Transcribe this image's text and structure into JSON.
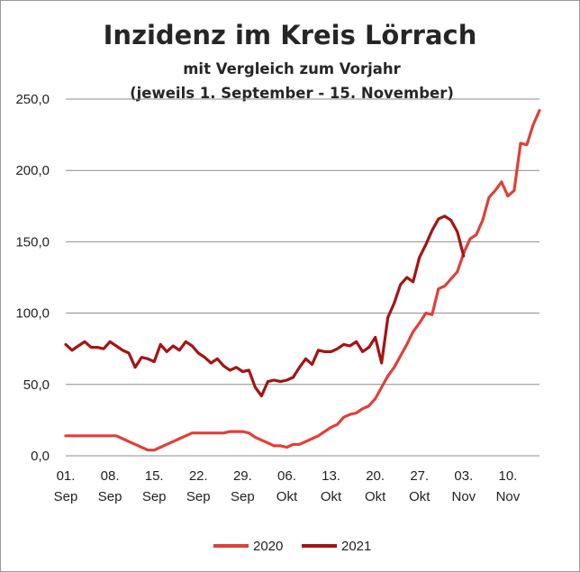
{
  "chart_data": {
    "type": "line",
    "title": "Inzidenz im Kreis Lörrach",
    "subtitle": "mit Vergleich zum Vorjahr",
    "subtitle2": "(jeweils 1. September - 15. November)",
    "xlabel": "",
    "ylabel": "",
    "ylim": [
      0,
      250
    ],
    "xlim": [
      1,
      76
    ],
    "grid": true,
    "legend_position": "bottom",
    "y_ticks": [
      "0,0",
      "50,0",
      "100,0",
      "150,0",
      "200,0",
      "250,0"
    ],
    "x_ticks": [
      {
        "day": 1,
        "l1": "01.",
        "l2": "Sep"
      },
      {
        "day": 8,
        "l1": "08.",
        "l2": "Sep"
      },
      {
        "day": 15,
        "l1": "15.",
        "l2": "Sep"
      },
      {
        "day": 22,
        "l1": "22.",
        "l2": "Sep"
      },
      {
        "day": 29,
        "l1": "29.",
        "l2": "Sep"
      },
      {
        "day": 36,
        "l1": "06.",
        "l2": "Okt"
      },
      {
        "day": 43,
        "l1": "13.",
        "l2": "Okt"
      },
      {
        "day": 50,
        "l1": "20.",
        "l2": "Okt"
      },
      {
        "day": 57,
        "l1": "27.",
        "l2": "Okt"
      },
      {
        "day": 64,
        "l1": "03.",
        "l2": "Nov"
      },
      {
        "day": 71,
        "l1": "10.",
        "l2": "Nov"
      }
    ],
    "series": [
      {
        "name": "2020",
        "color": "#e0403a",
        "x": [
          1,
          2,
          3,
          4,
          5,
          6,
          7,
          8,
          9,
          10,
          11,
          12,
          13,
          14,
          15,
          16,
          17,
          18,
          19,
          20,
          21,
          22,
          23,
          24,
          25,
          26,
          27,
          28,
          29,
          30,
          31,
          32,
          33,
          34,
          35,
          36,
          37,
          38,
          39,
          40,
          41,
          42,
          43,
          44,
          45,
          46,
          47,
          48,
          49,
          50,
          51,
          52,
          53,
          54,
          55,
          56,
          57,
          58,
          59,
          60,
          61,
          62,
          63,
          64,
          65,
          66,
          67,
          68,
          69,
          70,
          71,
          72,
          73,
          74,
          75,
          76
        ],
        "values": [
          14,
          14,
          14,
          14,
          14,
          14,
          14,
          14,
          14,
          12,
          10,
          8,
          6,
          4,
          4,
          6,
          8,
          10,
          12,
          14,
          16,
          16,
          16,
          16,
          16,
          16,
          17,
          17,
          17,
          16,
          13,
          11,
          9,
          7,
          7,
          6,
          8,
          8,
          10,
          12,
          14,
          17,
          20,
          22,
          27,
          29,
          30,
          33,
          35,
          40,
          48,
          56,
          62,
          70,
          78,
          87,
          93,
          100,
          99,
          117,
          119,
          124,
          129,
          142,
          152,
          155,
          165,
          181,
          186,
          192,
          182,
          186,
          219,
          218,
          232,
          242
        ]
      },
      {
        "name": "2021",
        "color": "#a41414",
        "x": [
          1,
          2,
          3,
          4,
          5,
          6,
          7,
          8,
          9,
          10,
          11,
          12,
          13,
          14,
          15,
          16,
          17,
          18,
          19,
          20,
          21,
          22,
          23,
          24,
          25,
          26,
          27,
          28,
          29,
          30,
          31,
          32,
          33,
          34,
          35,
          36,
          37,
          38,
          39,
          40,
          41,
          42,
          43,
          44,
          45,
          46,
          47,
          48,
          49,
          50,
          51,
          52,
          53,
          54,
          55,
          56,
          57,
          58,
          59,
          60,
          61,
          62,
          63,
          64
        ],
        "values": [
          78,
          74,
          77,
          80,
          76,
          76,
          75,
          80,
          77,
          74,
          72,
          62,
          69,
          68,
          66,
          78,
          73,
          77,
          74,
          80,
          77,
          72,
          69,
          65,
          68,
          63,
          60,
          62,
          59,
          60,
          48,
          42,
          52,
          53,
          52,
          53,
          55,
          62,
          68,
          64,
          74,
          73,
          73,
          75,
          78,
          77,
          80,
          73,
          76,
          83,
          65,
          97,
          107,
          120,
          125,
          122,
          139,
          148,
          158,
          166,
          168,
          165,
          157,
          140
        ]
      }
    ]
  }
}
